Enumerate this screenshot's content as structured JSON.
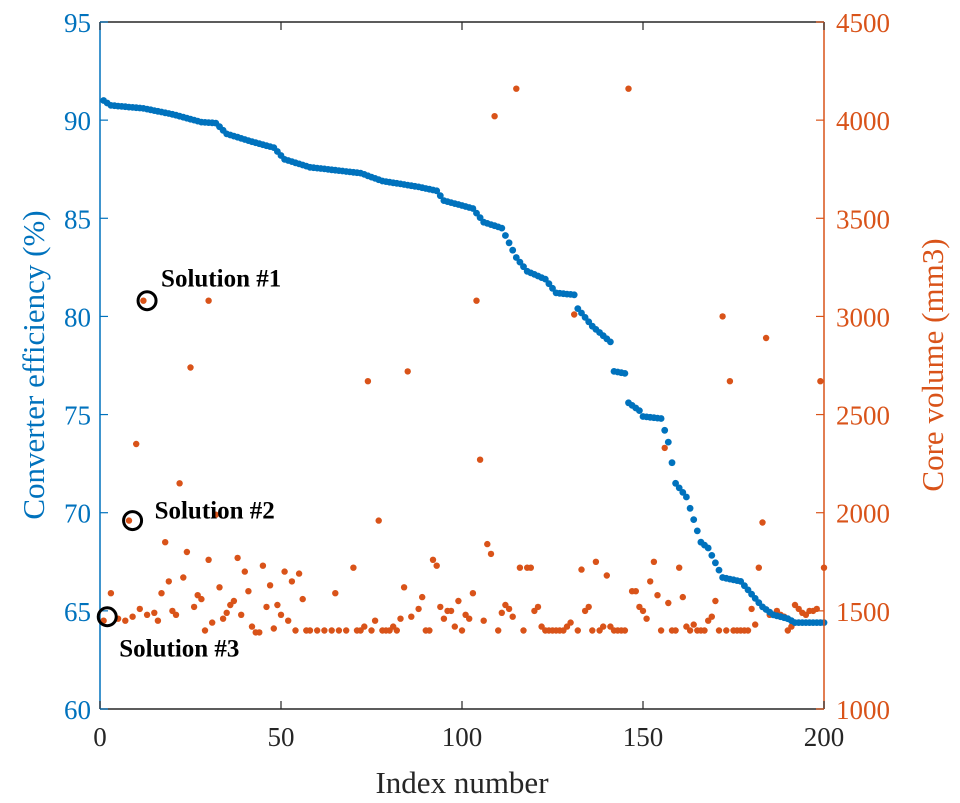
{
  "chart_data": {
    "type": "scatter",
    "xlabel": "Index number",
    "ylabel_left": "Converter efficiency (%)",
    "ylabel_right": "Core volume (mm3)",
    "xlim": [
      0,
      200
    ],
    "ylim_left": [
      60,
      95
    ],
    "ylim_right": [
      1000,
      4500
    ],
    "x_ticks": [
      "0",
      "50",
      "100",
      "150",
      "200"
    ],
    "y_left_ticks": [
      "60",
      "65",
      "70",
      "75",
      "80",
      "85",
      "90",
      "95"
    ],
    "y_right_ticks": [
      "1000",
      "1500",
      "2000",
      "2500",
      "3000",
      "3500",
      "4000",
      "4500"
    ],
    "colors": {
      "left_axis": "#0072BD",
      "right_axis": "#D95319",
      "efficiency": "#0072BD",
      "volume": "#D95319",
      "annotation": "#000000"
    },
    "series": [
      {
        "name": "",
        "axis": "left",
        "color": "#0072BD",
        "profile": [
          [
            1,
            91.0
          ],
          [
            3,
            90.75
          ],
          [
            12,
            90.6
          ],
          [
            20,
            90.3
          ],
          [
            28,
            89.9
          ],
          [
            32,
            89.85
          ],
          [
            35,
            89.3
          ],
          [
            42,
            88.9
          ],
          [
            48,
            88.6
          ],
          [
            51,
            88.0
          ],
          [
            58,
            87.6
          ],
          [
            72,
            87.3
          ],
          [
            78,
            86.9
          ],
          [
            88,
            86.6
          ],
          [
            93,
            86.4
          ],
          [
            95,
            85.9
          ],
          [
            103,
            85.5
          ],
          [
            106,
            84.8
          ],
          [
            111,
            84.5
          ],
          [
            115,
            83.0
          ],
          [
            118,
            82.3
          ],
          [
            123,
            81.9
          ],
          [
            126,
            81.2
          ],
          [
            131,
            81.1
          ],
          [
            132,
            80.4
          ],
          [
            136,
            79.5
          ],
          [
            141,
            78.7
          ],
          [
            142,
            77.2
          ],
          [
            145,
            77.1
          ],
          [
            146,
            75.6
          ],
          [
            149,
            75.2
          ],
          [
            150,
            74.9
          ],
          [
            155,
            74.8
          ],
          [
            157,
            73.6
          ],
          [
            159,
            71.5
          ],
          [
            162,
            70.8
          ],
          [
            166,
            68.5
          ],
          [
            168,
            68.2
          ],
          [
            172,
            66.7
          ],
          [
            177,
            66.5
          ],
          [
            183,
            65.2
          ],
          [
            186,
            64.8
          ],
          [
            190,
            64.6
          ],
          [
            192,
            64.4
          ],
          [
            200,
            64.4
          ]
        ]
      },
      {
        "name": "",
        "axis": "right",
        "color": "#D95319",
        "points": [
          [
            1,
            1450
          ],
          [
            3,
            1590
          ],
          [
            5,
            1460
          ],
          [
            7,
            1450
          ],
          [
            8,
            1960
          ],
          [
            9,
            1470
          ],
          [
            10,
            2350
          ],
          [
            11,
            1510
          ],
          [
            12,
            3080
          ],
          [
            13,
            1480
          ],
          [
            15,
            1490
          ],
          [
            16,
            1450
          ],
          [
            17,
            1590
          ],
          [
            18,
            1850
          ],
          [
            19,
            1650
          ],
          [
            20,
            1500
          ],
          [
            21,
            1480
          ],
          [
            22,
            2150
          ],
          [
            23,
            1670
          ],
          [
            24,
            1800
          ],
          [
            25,
            2740
          ],
          [
            26,
            1520
          ],
          [
            27,
            1580
          ],
          [
            28,
            1560
          ],
          [
            29,
            1400
          ],
          [
            30,
            1760
          ],
          [
            30,
            3080
          ],
          [
            31,
            1440
          ],
          [
            32,
            1990
          ],
          [
            33,
            1620
          ],
          [
            34,
            1460
          ],
          [
            35,
            1490
          ],
          [
            36,
            1530
          ],
          [
            37,
            1550
          ],
          [
            38,
            1770
          ],
          [
            39,
            1480
          ],
          [
            40,
            1700
          ],
          [
            41,
            1600
          ],
          [
            42,
            1420
          ],
          [
            43,
            1390
          ],
          [
            44,
            1390
          ],
          [
            45,
            1730
          ],
          [
            46,
            1520
          ],
          [
            47,
            1630
          ],
          [
            48,
            1410
          ],
          [
            49,
            1530
          ],
          [
            50,
            1480
          ],
          [
            51,
            1700
          ],
          [
            52,
            1450
          ],
          [
            53,
            1650
          ],
          [
            54,
            1400
          ],
          [
            55,
            1690
          ],
          [
            56,
            1560
          ],
          [
            57,
            1400
          ],
          [
            58,
            1400
          ],
          [
            60,
            1400
          ],
          [
            62,
            1400
          ],
          [
            64,
            1400
          ],
          [
            65,
            1590
          ],
          [
            66,
            1400
          ],
          [
            68,
            1400
          ],
          [
            70,
            1720
          ],
          [
            71,
            1400
          ],
          [
            72,
            1400
          ],
          [
            73,
            1420
          ],
          [
            74,
            2670
          ],
          [
            75,
            1400
          ],
          [
            76,
            1450
          ],
          [
            77,
            1960
          ],
          [
            78,
            1400
          ],
          [
            79,
            1400
          ],
          [
            80,
            1400
          ],
          [
            81,
            1420
          ],
          [
            82,
            1400
          ],
          [
            83,
            1460
          ],
          [
            84,
            1620
          ],
          [
            85,
            2720
          ],
          [
            86,
            1470
          ],
          [
            88,
            1510
          ],
          [
            89,
            1570
          ],
          [
            90,
            1400
          ],
          [
            91,
            1400
          ],
          [
            92,
            1760
          ],
          [
            93,
            1730
          ],
          [
            94,
            1520
          ],
          [
            95,
            1460
          ],
          [
            96,
            1500
          ],
          [
            97,
            1500
          ],
          [
            98,
            1420
          ],
          [
            99,
            1550
          ],
          [
            100,
            1400
          ],
          [
            101,
            1480
          ],
          [
            102,
            1460
          ],
          [
            103,
            1590
          ],
          [
            104,
            3080
          ],
          [
            105,
            2270
          ],
          [
            106,
            1450
          ],
          [
            107,
            1840
          ],
          [
            108,
            1790
          ],
          [
            109,
            4020
          ],
          [
            110,
            1400
          ],
          [
            111,
            1490
          ],
          [
            112,
            1530
          ],
          [
            113,
            1510
          ],
          [
            114,
            1470
          ],
          [
            115,
            4160
          ],
          [
            116,
            1720
          ],
          [
            117,
            1400
          ],
          [
            118,
            1720
          ],
          [
            119,
            1720
          ],
          [
            120,
            1500
          ],
          [
            121,
            1520
          ],
          [
            122,
            1420
          ],
          [
            123,
            1400
          ],
          [
            124,
            1400
          ],
          [
            125,
            1400
          ],
          [
            126,
            1400
          ],
          [
            127,
            1400
          ],
          [
            128,
            1400
          ],
          [
            129,
            1420
          ],
          [
            130,
            1440
          ],
          [
            131,
            3010
          ],
          [
            132,
            1400
          ],
          [
            133,
            1710
          ],
          [
            134,
            1500
          ],
          [
            135,
            1520
          ],
          [
            136,
            1400
          ],
          [
            137,
            1750
          ],
          [
            138,
            1400
          ],
          [
            139,
            1420
          ],
          [
            140,
            1680
          ],
          [
            141,
            1420
          ],
          [
            142,
            1400
          ],
          [
            143,
            1400
          ],
          [
            144,
            1400
          ],
          [
            145,
            1400
          ],
          [
            146,
            4160
          ],
          [
            147,
            1600
          ],
          [
            148,
            1600
          ],
          [
            149,
            1520
          ],
          [
            150,
            1500
          ],
          [
            151,
            1460
          ],
          [
            152,
            1650
          ],
          [
            153,
            1750
          ],
          [
            154,
            1580
          ],
          [
            155,
            1400
          ],
          [
            156,
            2330
          ],
          [
            157,
            1540
          ],
          [
            158,
            1400
          ],
          [
            159,
            1400
          ],
          [
            160,
            1720
          ],
          [
            161,
            1570
          ],
          [
            162,
            1420
          ],
          [
            163,
            1400
          ],
          [
            164,
            1430
          ],
          [
            165,
            1400
          ],
          [
            166,
            1400
          ],
          [
            167,
            1400
          ],
          [
            168,
            1450
          ],
          [
            169,
            1470
          ],
          [
            170,
            1550
          ],
          [
            171,
            1400
          ],
          [
            172,
            3000
          ],
          [
            173,
            1400
          ],
          [
            174,
            2670
          ],
          [
            175,
            1400
          ],
          [
            176,
            1400
          ],
          [
            177,
            1400
          ],
          [
            178,
            1400
          ],
          [
            179,
            1400
          ],
          [
            180,
            1510
          ],
          [
            181,
            1430
          ],
          [
            182,
            1720
          ],
          [
            183,
            1950
          ],
          [
            184,
            2890
          ],
          [
            185,
            1480
          ],
          [
            186,
            1480
          ],
          [
            187,
            1500
          ],
          [
            188,
            1480
          ],
          [
            189,
            1470
          ],
          [
            190,
            1400
          ],
          [
            191,
            1420
          ],
          [
            192,
            1530
          ],
          [
            193,
            1510
          ],
          [
            194,
            1490
          ],
          [
            195,
            1480
          ],
          [
            196,
            1500
          ],
          [
            197,
            1500
          ],
          [
            198,
            1510
          ],
          [
            199,
            2670
          ],
          [
            200,
            1720
          ]
        ]
      }
    ],
    "annotations": [
      {
        "text": "Solution #1",
        "x": 13,
        "y": 3080,
        "axis": "right"
      },
      {
        "text": "Solution #2",
        "x": 9,
        "y": 1960,
        "axis": "right"
      },
      {
        "text": "Solution #3",
        "x": 2,
        "y": 1470,
        "axis": "right"
      }
    ]
  }
}
